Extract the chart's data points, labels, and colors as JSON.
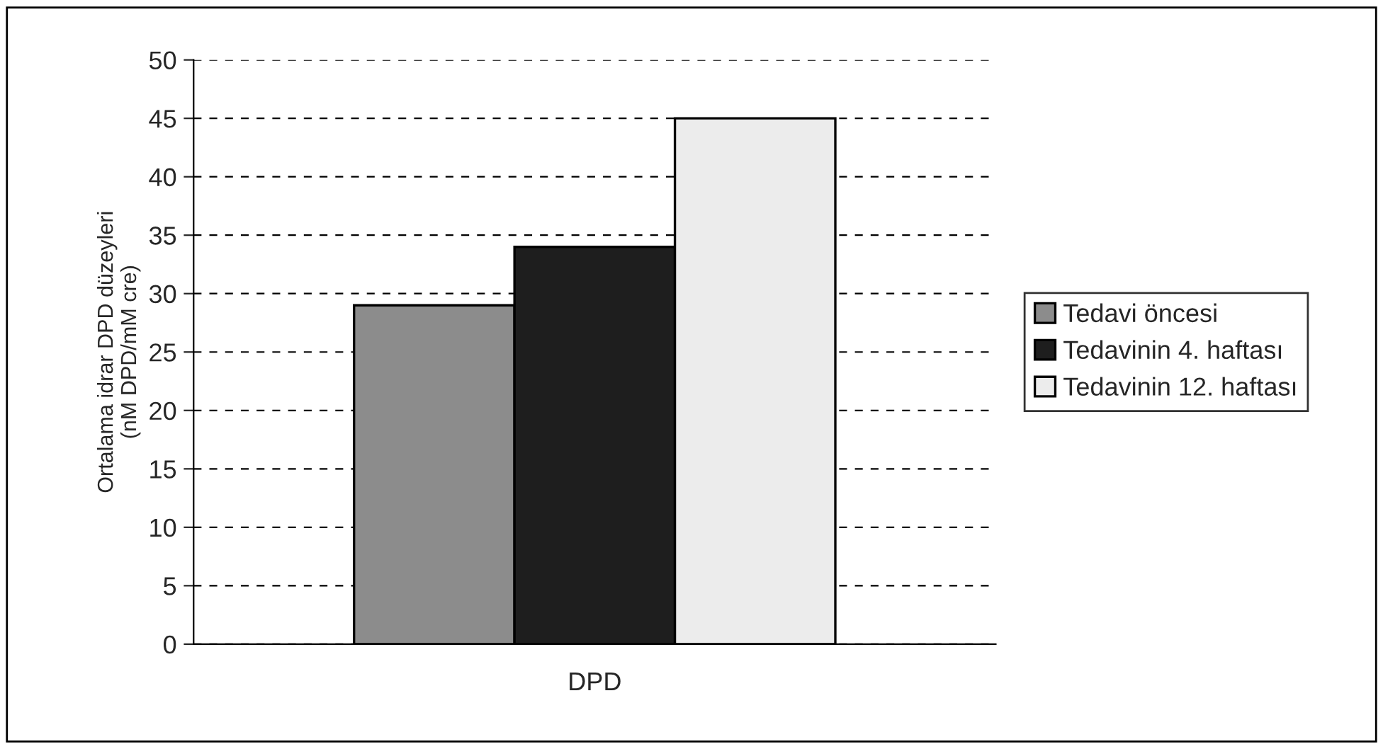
{
  "chart_data": {
    "type": "bar",
    "categories": [
      "DPD"
    ],
    "ylabel": "Ortalama idrar DPD düzeyleri\n(nM DPD/mM cre)",
    "series": [
      {
        "name": "Tedavi öncesi",
        "color": "#8c8c8c",
        "values": [
          29
        ]
      },
      {
        "name": "Tedavinin 4. haftası",
        "color": "#1e1e1e",
        "values": [
          34
        ]
      },
      {
        "name": "Tedavinin 12. haftası",
        "color": "#ececec",
        "values": [
          45
        ]
      }
    ],
    "ylim": [
      0,
      50
    ],
    "yticks": [
      0,
      5,
      10,
      15,
      20,
      25,
      30,
      35,
      40,
      45,
      50
    ],
    "grid": "y",
    "legend": "right"
  }
}
